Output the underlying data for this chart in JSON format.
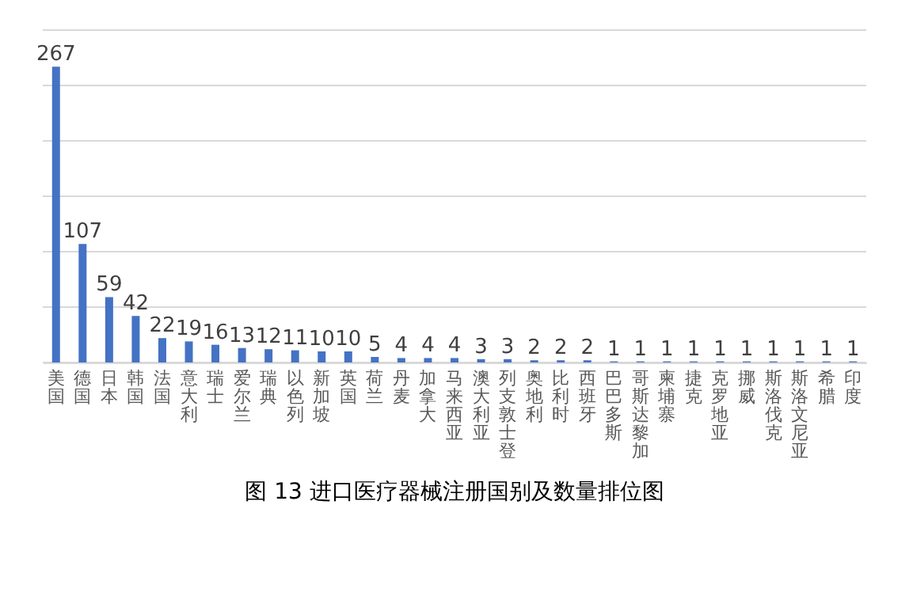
{
  "chart_data": {
    "type": "bar",
    "title": "图 13 进口医疗器械注册国别及数量排位图",
    "categories": [
      "美国",
      "德国",
      "日本",
      "韩国",
      "法国",
      "意大利",
      "瑞士",
      "爱尔兰",
      "瑞典",
      "以色列",
      "新加坡",
      "英国",
      "荷兰",
      "丹麦",
      "加拿大",
      "马来西亚",
      "澳大利亚",
      "列支敦士登",
      "奥地利",
      "比利时",
      "西班牙",
      "巴巴多斯",
      "哥斯达黎加",
      "柬埔寨",
      "捷克",
      "克罗地亚",
      "挪威",
      "斯洛伐克",
      "斯洛文尼亚",
      "希腊",
      "印度"
    ],
    "values": [
      267,
      107,
      59,
      42,
      22,
      19,
      16,
      13,
      12,
      11,
      10,
      10,
      5,
      4,
      4,
      4,
      3,
      3,
      2,
      2,
      2,
      1,
      1,
      1,
      1,
      1,
      1,
      1,
      1,
      1,
      1
    ],
    "color": "#4472c4",
    "ylim": [
      0,
      300
    ],
    "yticks": [
      {
        "value": 0,
        "label": null
      },
      {
        "value": 50,
        "label": null
      },
      {
        "value": 100,
        "label": null
      },
      {
        "value": 150,
        "label": null
      },
      {
        "value": 200,
        "label": null
      },
      {
        "value": 250,
        "label": null
      },
      {
        "value": 300,
        "label": null
      }
    ],
    "grid": true,
    "data_labels": true,
    "tick_labels": "x"
  }
}
